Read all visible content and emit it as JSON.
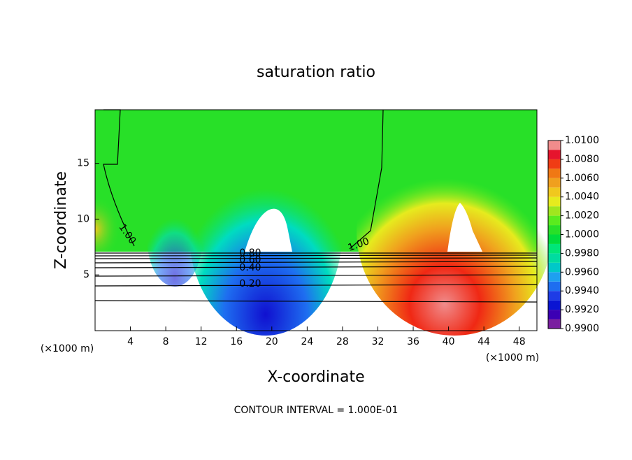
{
  "chart_data": {
    "type": "contour",
    "title": "saturation ratio",
    "xlabel": "X-coordinate",
    "ylabel": "Z-coordinate",
    "x_unit": "(×1000 m)",
    "y_unit": "(×1000 m)",
    "footer": "CONTOUR INTERVAL = 1.000E-01",
    "xlim": [
      0,
      50
    ],
    "xticks": [
      4,
      8,
      12,
      16,
      20,
      24,
      28,
      32,
      36,
      40,
      44,
      48
    ],
    "ylim": [
      0,
      19.8
    ],
    "yticks": [
      5,
      10,
      15
    ],
    "contour_labels": [
      "1.00",
      "1.00",
      "0.80",
      "0.60",
      "0.40",
      "0.20"
    ],
    "colorbar_lim": [
      0.99,
      1.01
    ],
    "colorbar_ticks": [
      {
        "value": 0.99,
        "label": "0.9900"
      },
      {
        "value": 0.992,
        "label": "0.9920"
      },
      {
        "value": 0.994,
        "label": "0.9940"
      },
      {
        "value": 0.996,
        "label": "0.9960"
      },
      {
        "value": 0.998,
        "label": "0.9980"
      },
      {
        "value": 1.0,
        "label": "1.0000"
      },
      {
        "value": 1.002,
        "label": "1.0020"
      },
      {
        "value": 1.004,
        "label": "1.0040"
      },
      {
        "value": 1.006,
        "label": "1.0060"
      },
      {
        "value": 1.008,
        "label": "1.0080"
      },
      {
        "value": 1.01,
        "label": "1.0100"
      }
    ],
    "colorbar_colors": [
      "#7a1fa0",
      "#3c00b4",
      "#0a14d2",
      "#1e3ce6",
      "#1e6ef0",
      "#1ea0f0",
      "#00c8c8",
      "#00dca0",
      "#00e678",
      "#00dc3c",
      "#28e028",
      "#5aeb1e",
      "#a0e61e",
      "#e6eb1e",
      "#f0c81e",
      "#f0a01e",
      "#f07814",
      "#f03c14",
      "#e6142d",
      "#f08c8c"
    ]
  }
}
